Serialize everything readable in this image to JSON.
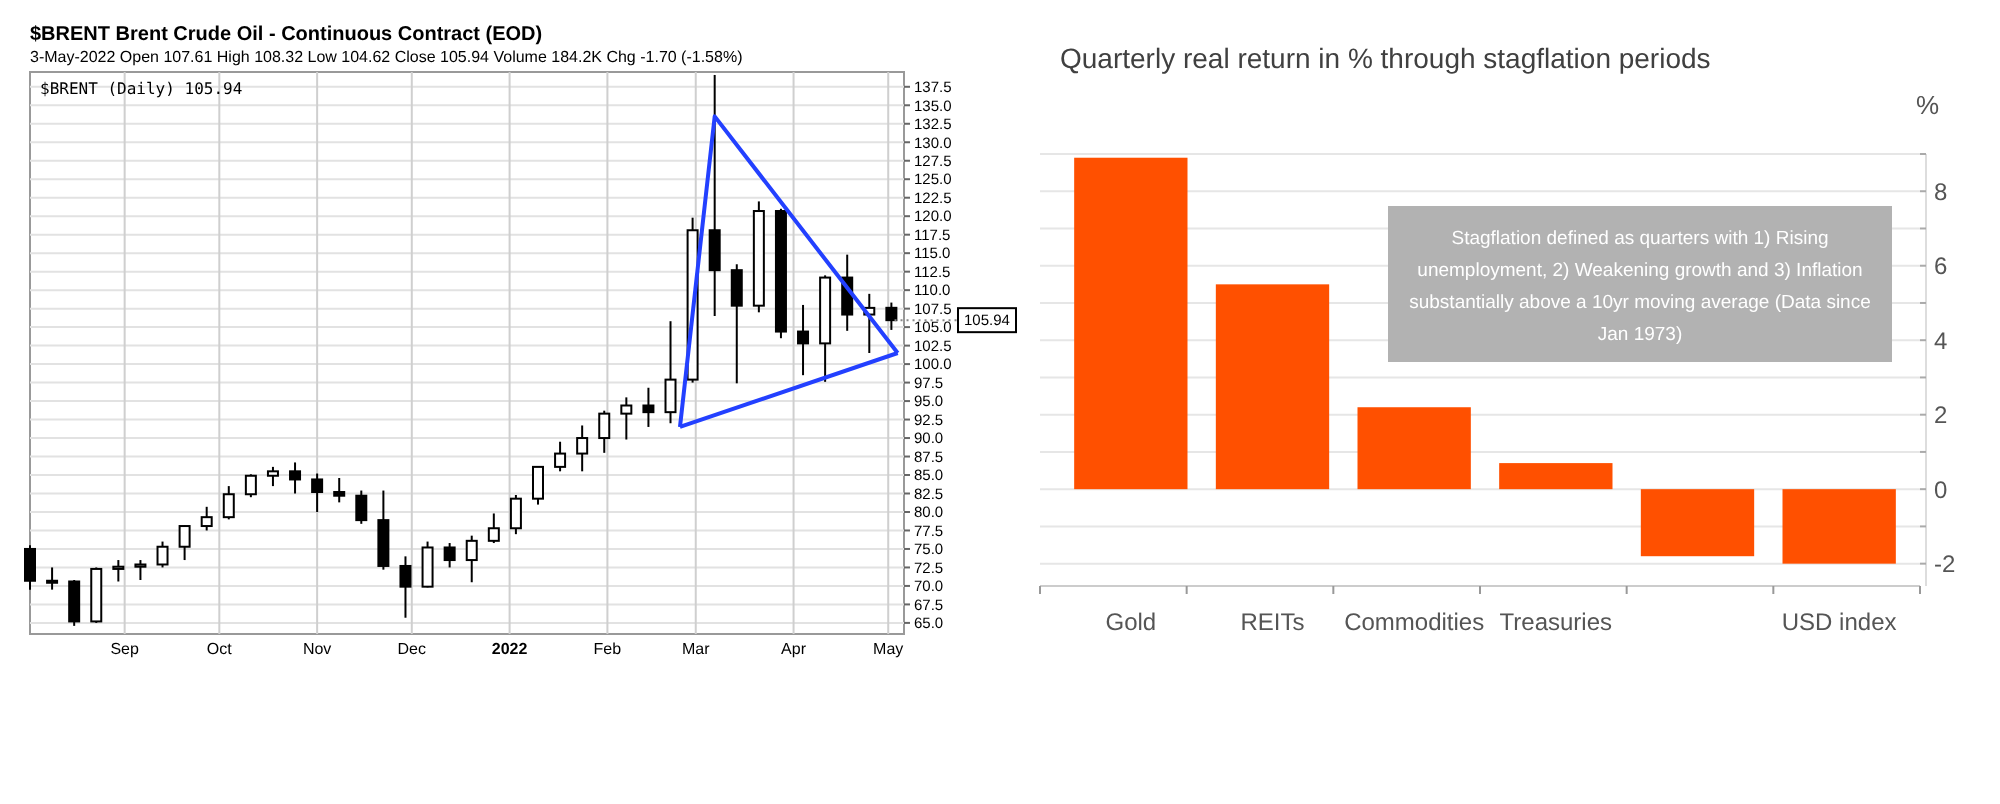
{
  "chart_data": [
    {
      "type": "candlestick",
      "title": "$BRENT Brent Crude Oil - Continuous Contract (EOD)",
      "subtitle": "3-May-2022   Open 107.61  High 108.32  Low 104.62  Close 105.94  Volume 184.2K  Chg -1.70 (-1.58%)",
      "annotations": [
        "$BRENT (Daily) 105.94",
        {
          "text": "105.94",
          "x": "2022-05-03",
          "y": 105.94
        }
      ],
      "x": [
        "2021-08-02",
        "2021-08-09",
        "2021-08-16",
        "2021-08-23",
        "2021-08-30",
        "2021-09-06",
        "2021-09-13",
        "2021-09-20",
        "2021-09-27",
        "2021-10-04",
        "2021-10-11",
        "2021-10-18",
        "2021-10-25",
        "2021-11-01",
        "2021-11-08",
        "2021-11-15",
        "2021-11-22",
        "2021-11-29",
        "2021-12-06",
        "2021-12-13",
        "2021-12-20",
        "2021-12-27",
        "2022-01-03",
        "2022-01-10",
        "2022-01-17",
        "2022-01-24",
        "2022-01-31",
        "2022-02-07",
        "2022-02-14",
        "2022-02-21",
        "2022-02-28",
        "2022-03-07",
        "2022-03-14",
        "2022-03-21",
        "2022-03-28",
        "2022-04-04",
        "2022-04-11",
        "2022-04-18",
        "2022-04-25",
        "2022-05-02"
      ],
      "ohlc": [
        [
          75,
          75.5,
          69.5,
          70.7
        ],
        [
          70.7,
          72.5,
          69.5,
          70.6
        ],
        [
          70.6,
          70.8,
          64.6,
          65.2
        ],
        [
          65.2,
          72.5,
          65,
          72.3
        ],
        [
          72.3,
          73.5,
          70.6,
          72.6
        ],
        [
          72.6,
          73.5,
          70.8,
          72.9
        ],
        [
          72.9,
          76,
          72.5,
          75.3
        ],
        [
          75.3,
          78.2,
          73.5,
          78.1
        ],
        [
          78.1,
          80.7,
          77.5,
          79.3
        ],
        [
          79.3,
          83.5,
          79,
          82.4
        ],
        [
          82.4,
          85.1,
          82,
          84.9
        ],
        [
          84.9,
          86.1,
          83.5,
          85.5
        ],
        [
          85.5,
          86.7,
          82.5,
          84.4
        ],
        [
          84.4,
          85.2,
          80,
          82.7
        ],
        [
          82.7,
          84.6,
          81.3,
          82.2
        ],
        [
          82.2,
          82.9,
          78.4,
          78.9
        ],
        [
          78.9,
          82.9,
          72.2,
          72.7
        ],
        [
          72.7,
          74,
          65.7,
          69.9
        ],
        [
          69.9,
          76,
          69.8,
          75.2
        ],
        [
          75.2,
          75.8,
          72.5,
          73.5
        ],
        [
          73.5,
          76.8,
          70.5,
          76.1
        ],
        [
          76.1,
          79.8,
          75.8,
          77.8
        ],
        [
          77.8,
          82.3,
          77,
          81.8
        ],
        [
          81.8,
          86.1,
          81,
          86.1
        ],
        [
          86.1,
          89.5,
          85.5,
          87.9
        ],
        [
          87.9,
          91.7,
          85.5,
          90
        ],
        [
          90,
          93.7,
          88,
          93.3
        ],
        [
          93.3,
          95.5,
          89.8,
          94.4
        ],
        [
          94.4,
          96.8,
          91.5,
          93.5
        ],
        [
          93.5,
          105.8,
          92,
          97.9
        ],
        [
          97.9,
          119.8,
          97.5,
          118.1
        ],
        [
          118.1,
          139.1,
          106.5,
          112.7
        ],
        [
          112.7,
          113.5,
          97.4,
          107.9
        ],
        [
          107.9,
          122,
          107,
          120.7
        ],
        [
          120.7,
          121,
          103.5,
          104.4
        ],
        [
          104.4,
          108,
          98.5,
          102.8
        ],
        [
          102.8,
          112,
          97.6,
          111.7
        ],
        [
          111.7,
          114.8,
          104.5,
          106.7
        ],
        [
          106.7,
          109.5,
          101.5,
          107.6
        ],
        [
          107.61,
          108.32,
          104.62,
          105.94
        ]
      ],
      "series": [
        {
          "type": "line",
          "color": "#2340ff",
          "x": [
            "2022-02-24",
            "2022-03-07",
            "2022-05-04"
          ],
          "values": [
            91.5,
            133.5,
            101.5
          ]
        },
        {
          "type": "line",
          "color": "#2340ff",
          "x": [
            "2022-02-24",
            "2022-05-04"
          ],
          "values": [
            91.5,
            101.5
          ]
        }
      ],
      "xlim": [
        "2021-08-02",
        "2022-05-06"
      ],
      "xticks": [
        {
          "value": "2021-09-01",
          "label": "Sep"
        },
        {
          "value": "2021-10-01",
          "label": "Oct"
        },
        {
          "value": "2021-11-01",
          "label": "Nov"
        },
        {
          "value": "2021-12-01",
          "label": "Dec"
        },
        {
          "value": "2022-01-01",
          "label": "2022"
        },
        {
          "value": "2022-02-01",
          "label": "Feb"
        },
        {
          "value": "2022-03-01",
          "label": "Mar"
        },
        {
          "value": "2022-04-01",
          "label": "Apr"
        },
        {
          "value": "2022-05-01",
          "label": "May"
        }
      ],
      "ylim": [
        63.5,
        139.5
      ],
      "yticks": [
        {
          "value": 65,
          "label": "65.0"
        },
        {
          "value": 67.5,
          "label": "67.5"
        },
        {
          "value": 70,
          "label": "70.0"
        },
        {
          "value": 72.5,
          "label": "72.5"
        },
        {
          "value": 75,
          "label": "75.0"
        },
        {
          "value": 77.5,
          "label": "77.5"
        },
        {
          "value": 80,
          "label": "80.0"
        },
        {
          "value": 82.5,
          "label": "82.5"
        },
        {
          "value": 85,
          "label": "85.0"
        },
        {
          "value": 87.5,
          "label": "87.5"
        },
        {
          "value": 90,
          "label": "90.0"
        },
        {
          "value": 92.5,
          "label": "92.5"
        },
        {
          "value": 95,
          "label": "95.0"
        },
        {
          "value": 97.5,
          "label": "97.5"
        },
        {
          "value": 100,
          "label": "100.0"
        },
        {
          "value": 102.5,
          "label": "102.5"
        },
        {
          "value": 105,
          "label": "105.0"
        },
        {
          "value": 107.5,
          "label": "107.5"
        },
        {
          "value": 110,
          "label": "110.0"
        },
        {
          "value": 112.5,
          "label": "112.5"
        },
        {
          "value": 115,
          "label": "115.0"
        },
        {
          "value": 117.5,
          "label": "117.5"
        },
        {
          "value": 120,
          "label": "120.0"
        },
        {
          "value": 122.5,
          "label": "122.5"
        },
        {
          "value": 125,
          "label": "125.0"
        },
        {
          "value": 127.5,
          "label": "127.5"
        },
        {
          "value": 130,
          "label": "130.0"
        },
        {
          "value": 132.5,
          "label": "132.5"
        },
        {
          "value": 135,
          "label": "135.0"
        },
        {
          "value": 137.5,
          "label": "137.5"
        }
      ],
      "grid": true
    },
    {
      "type": "bar",
      "title": "Quarterly real return in % through stagflation periods",
      "ylabel": "%",
      "annotations": [
        "Stagflation defined as quarters with 1) Rising unemployment, 2) Weakening growth and 3) Inflation substantially above a 10yr moving average (Data since Jan 1973)"
      ],
      "categories": [
        "Gold",
        "REITs",
        "Commodities",
        "Treasuries",
        null,
        "USD index"
      ],
      "values": [
        8.9,
        5.5,
        2.2,
        0.7,
        -1.8,
        -2.0
      ],
      "color": "#ff5000",
      "ylim": [
        -2.6,
        9
      ],
      "yticks": [
        -2,
        {
          "value": -1,
          "label": null
        },
        0,
        {
          "value": 1,
          "label": null
        },
        2,
        {
          "value": 3,
          "label": null
        },
        4,
        {
          "value": 5,
          "label": null
        },
        6,
        {
          "value": 7,
          "label": null
        },
        8,
        {
          "value": 9,
          "label": null
        }
      ],
      "grid": "y"
    }
  ]
}
